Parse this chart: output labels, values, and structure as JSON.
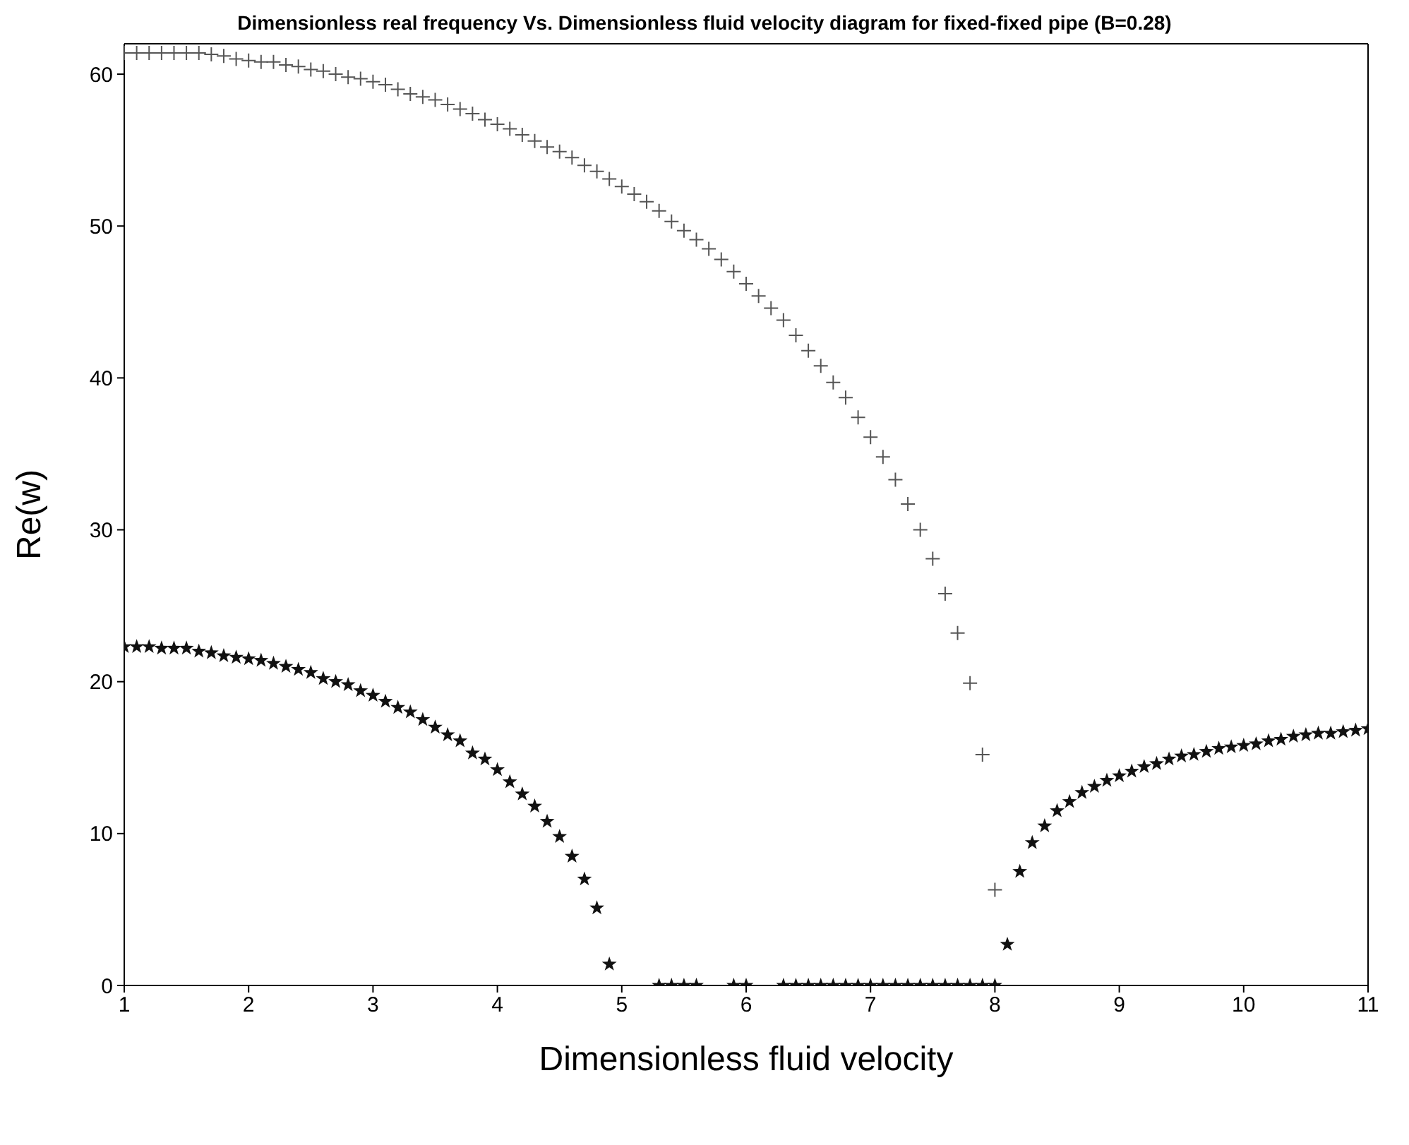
{
  "chart_data": {
    "type": "scatter",
    "title": "Dimensionless real frequency Vs. Dimensionless fluid velocity diagram for fixed-fixed pipe (B=0.28)",
    "xlabel": "Dimensionless fluid velocity",
    "ylabel": "Re(w)",
    "xlim": [
      1,
      11
    ],
    "ylim": [
      0,
      62
    ],
    "xticks": [
      1,
      2,
      3,
      4,
      5,
      6,
      7,
      8,
      9,
      10,
      11
    ],
    "yticks": [
      0,
      10,
      20,
      30,
      40,
      50,
      60
    ],
    "series": [
      {
        "color": "#555555",
        "marker": "cross",
        "x": [
          1.0,
          1.1,
          1.2,
          1.3,
          1.4,
          1.5,
          1.6,
          1.7,
          1.8,
          1.9,
          2.0,
          2.1,
          2.2,
          2.3,
          2.4,
          2.5,
          2.6,
          2.7,
          2.8,
          2.9,
          3.0,
          3.1,
          3.2,
          3.3,
          3.4,
          3.5,
          3.6,
          3.7,
          3.8,
          3.9,
          4.0,
          4.1,
          4.2,
          4.3,
          4.4,
          4.5,
          4.6,
          4.7,
          4.8,
          4.9,
          5.0,
          5.1,
          5.2,
          5.3,
          5.4,
          5.5,
          5.6,
          5.7,
          5.8,
          5.9,
          6.0,
          6.1,
          6.2,
          6.3,
          6.4,
          6.5,
          6.6,
          6.7,
          6.8,
          6.9,
          7.0,
          7.1,
          7.2,
          7.3,
          7.4,
          7.5,
          7.6,
          7.7,
          7.8,
          7.9,
          8.0
        ],
        "values": [
          61.4,
          61.4,
          61.4,
          61.4,
          61.4,
          61.4,
          61.4,
          61.3,
          61.2,
          61.0,
          60.9,
          60.8,
          60.8,
          60.6,
          60.5,
          60.3,
          60.2,
          60.0,
          59.8,
          59.7,
          59.5,
          59.3,
          59.0,
          58.7,
          58.5,
          58.3,
          58.0,
          57.7,
          57.4,
          57.0,
          56.7,
          56.4,
          56.0,
          55.6,
          55.2,
          54.9,
          54.5,
          54.0,
          53.6,
          53.1,
          52.6,
          52.1,
          51.6,
          51.0,
          50.3,
          49.7,
          49.1,
          48.5,
          47.8,
          47.0,
          46.2,
          45.4,
          44.6,
          43.8,
          42.8,
          41.8,
          40.8,
          39.7,
          38.7,
          37.4,
          36.1,
          34.8,
          33.3,
          31.7,
          30.0,
          28.1,
          25.8,
          23.2,
          19.9,
          15.2,
          6.3
        ]
      },
      {
        "color": "#111111",
        "marker": "star",
        "x": [
          1.0,
          1.1,
          1.2,
          1.3,
          1.4,
          1.5,
          1.6,
          1.7,
          1.8,
          1.9,
          2.0,
          2.1,
          2.2,
          2.3,
          2.4,
          2.5,
          2.6,
          2.7,
          2.8,
          2.9,
          3.0,
          3.1,
          3.2,
          3.3,
          3.4,
          3.5,
          3.6,
          3.7,
          3.8,
          3.9,
          4.0,
          4.1,
          4.2,
          4.3,
          4.4,
          4.5,
          4.6,
          4.7,
          4.8,
          4.9,
          5.3,
          5.4,
          5.5,
          5.6,
          5.9,
          6.0,
          6.3,
          6.4,
          6.5,
          6.6,
          6.7,
          6.8,
          6.9,
          7.0,
          7.1,
          7.2,
          7.3,
          7.4,
          7.5,
          7.6,
          7.7,
          7.8,
          7.9,
          8.0,
          8.1,
          8.2,
          8.3,
          8.4,
          8.5,
          8.6,
          8.7,
          8.8,
          8.9,
          9.0,
          9.1,
          9.2,
          9.3,
          9.4,
          9.5,
          9.6,
          9.7,
          9.8,
          9.9,
          10.0,
          10.1,
          10.2,
          10.3,
          10.4,
          10.5,
          10.6,
          10.7,
          10.8,
          10.9,
          11.0
        ],
        "values": [
          22.3,
          22.3,
          22.3,
          22.2,
          22.2,
          22.2,
          22.0,
          21.9,
          21.7,
          21.6,
          21.5,
          21.4,
          21.2,
          21.0,
          20.8,
          20.6,
          20.2,
          20.0,
          19.8,
          19.4,
          19.1,
          18.7,
          18.3,
          18.0,
          17.5,
          17.0,
          16.5,
          16.1,
          15.3,
          14.9,
          14.2,
          13.4,
          12.6,
          11.8,
          10.8,
          9.8,
          8.5,
          7.0,
          5.1,
          1.4,
          0,
          0,
          0,
          0,
          0,
          0,
          0,
          0,
          0,
          0,
          0,
          0,
          0,
          0,
          0,
          0,
          0,
          0,
          0,
          0,
          0,
          0,
          0,
          0,
          2.7,
          7.5,
          9.4,
          10.5,
          11.5,
          12.1,
          12.7,
          13.1,
          13.5,
          13.8,
          14.1,
          14.4,
          14.6,
          14.9,
          15.1,
          15.2,
          15.4,
          15.6,
          15.7,
          15.8,
          15.9,
          16.1,
          16.2,
          16.4,
          16.5,
          16.6,
          16.6,
          16.7,
          16.8,
          16.9
        ]
      }
    ]
  }
}
